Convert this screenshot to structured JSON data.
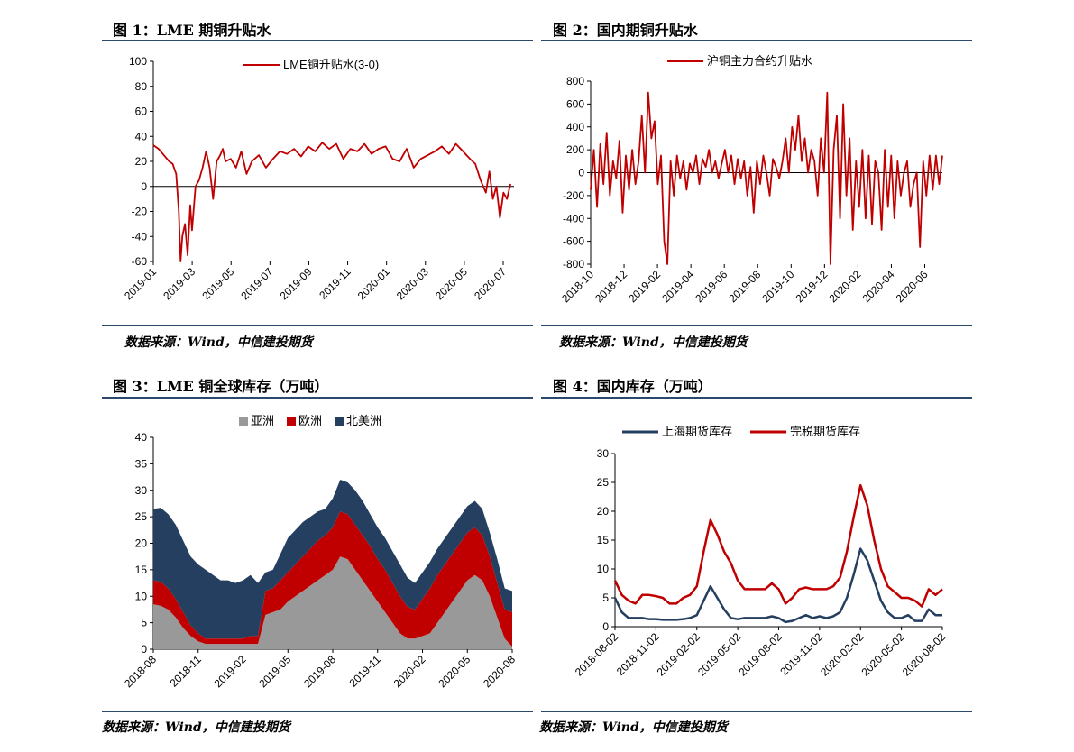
{
  "panels": [
    {
      "title": "图 1：LME 期铜升贴水",
      "source": "数据来源：Wind，中信建投期货"
    },
    {
      "title": "图 2：国内期铜升贴水",
      "source": "数据来源：Wind，中信建投期货"
    },
    {
      "title": "图 3：LME 铜全球库存（万吨）",
      "source": "数据来源：Wind，中信建投期货"
    },
    {
      "title": "图 4：国内库存（万吨）",
      "source": "数据来源：Wind，中信建投期货"
    }
  ],
  "colors": {
    "rule": "#2b4a6b",
    "red": "#c00000",
    "navy": "#243f60",
    "gray": "#999999"
  },
  "chart_data": [
    {
      "type": "line",
      "title": "",
      "ylim": [
        -60,
        100
      ],
      "yticks": [
        "100",
        "80",
        "60",
        "40",
        "20",
        "0",
        "-20",
        "-40",
        "-60"
      ],
      "xticks": [
        "2019-01",
        "2019-03",
        "2019-05",
        "2019-07",
        "2019-09",
        "2019-11",
        "2020-01",
        "2020-03",
        "2020-05",
        "2020-07"
      ],
      "legend": "top-center",
      "series": [
        {
          "name": "LME铜升贴水(3-0)",
          "color": "#c00000",
          "x": [
            0,
            0.3,
            0.6,
            0.9,
            1.1,
            1.3,
            1.45,
            1.55,
            1.65,
            1.8,
            1.95,
            2.1,
            2.2,
            2.4,
            2.6,
            2.8,
            3.0,
            3.2,
            3.4,
            3.6,
            3.8,
            3.95,
            4.1,
            4.4,
            4.7,
            5.0,
            5.3,
            5.6,
            6.0,
            6.4,
            6.8,
            7.2,
            7.6,
            8.0,
            8.4,
            8.8,
            9.2,
            9.6,
            10.0,
            10.4,
            10.8,
            11.2,
            11.6,
            12.0,
            12.4,
            12.8,
            13.2,
            13.6,
            14.0,
            14.4,
            14.8,
            15.2,
            15.6,
            16.0,
            16.4,
            16.8,
            17.2,
            17.6,
            18.0,
            18.3,
            18.6,
            18.9,
            19.1,
            19.3,
            19.5,
            19.7,
            19.9,
            20.1,
            20.3
          ],
          "values": [
            33,
            30,
            25,
            20,
            18,
            10,
            -20,
            -60,
            -40,
            -30,
            -55,
            -15,
            -35,
            0,
            5,
            15,
            28,
            15,
            -10,
            20,
            25,
            30,
            20,
            22,
            15,
            28,
            10,
            20,
            25,
            15,
            22,
            28,
            26,
            30,
            24,
            32,
            28,
            35,
            30,
            34,
            22,
            30,
            28,
            34,
            26,
            30,
            32,
            22,
            20,
            30,
            15,
            22,
            25,
            28,
            32,
            26,
            34,
            28,
            22,
            18,
            5,
            -5,
            12,
            -10,
            0,
            -25,
            -5,
            -10,
            2
          ]
        }
      ]
    },
    {
      "type": "line",
      "title": "",
      "ylim": [
        -800,
        800
      ],
      "yticks": [
        "800",
        "600",
        "400",
        "200",
        "0",
        "-200",
        "-400",
        "-600",
        "-800"
      ],
      "xticks": [
        "2018-10",
        "2018-12",
        "2019-02",
        "2019-04",
        "2019-06",
        "2019-08",
        "2019-10",
        "2019-12",
        "2020-02",
        "2020-04",
        "2020-06"
      ],
      "legend": "top-center",
      "series": [
        {
          "name": "沪铜主力合约升贴水",
          "color": "#c00000",
          "x": [
            0,
            0.2,
            0.4,
            0.6,
            0.8,
            1.0,
            1.2,
            1.4,
            1.6,
            1.8,
            2.0,
            2.2,
            2.4,
            2.6,
            2.8,
            3.0,
            3.2,
            3.4,
            3.6,
            3.8,
            4.0,
            4.2,
            4.4,
            4.6,
            4.8,
            5.0,
            5.2,
            5.4,
            5.6,
            5.8,
            6.0,
            6.2,
            6.4,
            6.6,
            6.8,
            7.0,
            7.2,
            7.4,
            7.6,
            7.8,
            8.0,
            8.2,
            8.4,
            8.6,
            8.8,
            9.0,
            9.2,
            9.4,
            9.6,
            9.8,
            10.0,
            10.2,
            10.4,
            10.6,
            10.8,
            11.0,
            11.2,
            11.4,
            11.6,
            11.8,
            12.0,
            12.2,
            12.4,
            12.6,
            12.8,
            13.0,
            13.2,
            13.4,
            13.6,
            13.8,
            14.0,
            14.2,
            14.4,
            14.6,
            14.8,
            15.0,
            15.2,
            15.4,
            15.6,
            15.8,
            16.0,
            16.2,
            16.4,
            16.6,
            16.8,
            17.0,
            17.2,
            17.4,
            17.6,
            17.8,
            18.0,
            18.2,
            18.4,
            18.6,
            18.8,
            19.0,
            19.2,
            19.4,
            19.6,
            19.8,
            20.0,
            20.2,
            20.4,
            20.6,
            20.8,
            21.0,
            21.2,
            21.4,
            21.6,
            21.8,
            22.0
          ],
          "values": [
            -150,
            200,
            -300,
            250,
            -100,
            350,
            -200,
            100,
            -50,
            280,
            -350,
            150,
            -150,
            200,
            -100,
            100,
            500,
            0,
            700,
            300,
            450,
            -100,
            150,
            -600,
            -800,
            100,
            -200,
            150,
            -50,
            100,
            -150,
            80,
            0,
            150,
            -100,
            120,
            50,
            200,
            0,
            100,
            -50,
            80,
            200,
            0,
            150,
            -100,
            120,
            -50,
            100,
            -200,
            50,
            -350,
            100,
            -100,
            150,
            0,
            -200,
            120,
            50,
            -50,
            100,
            300,
            0,
            400,
            200,
            500,
            100,
            300,
            0,
            200,
            100,
            -200,
            300,
            0,
            700,
            -800,
            200,
            500,
            -400,
            600,
            -200,
            300,
            -500,
            100,
            -300,
            200,
            -400,
            150,
            -450,
            100,
            0,
            -500,
            200,
            -300,
            150,
            -400,
            100,
            -200,
            0,
            100,
            -300,
            -100,
            0,
            -650,
            100,
            -200,
            150,
            -150,
            150,
            -100,
            150
          ]
        }
      ]
    },
    {
      "type": "area",
      "title": "",
      "ylim": [
        0,
        40
      ],
      "yticks": [
        "40",
        "35",
        "30",
        "25",
        "20",
        "15",
        "10",
        "5",
        "0"
      ],
      "xticks": [
        "2018-08",
        "2018-11",
        "2019-02",
        "2019-05",
        "2019-08",
        "2019-11",
        "2020-02",
        "2020-05",
        "2020-08"
      ],
      "legend": "top-center",
      "stacked": true,
      "x": [
        0,
        0.5,
        1,
        1.5,
        2,
        2.5,
        3,
        3.5,
        4,
        4.5,
        5,
        5.5,
        6,
        6.5,
        7,
        7.5,
        8,
        8.5,
        9,
        9.5,
        10,
        10.5,
        11,
        11.5,
        12,
        12.5,
        13,
        13.5,
        14,
        14.5,
        15,
        15.5,
        16,
        16.5,
        17,
        17.5,
        18,
        18.5,
        19,
        19.5,
        20,
        20.5,
        21,
        21.5,
        22,
        22.5,
        23,
        23.5,
        24
      ],
      "series": [
        {
          "name": "亚洲",
          "color": "#999999",
          "values": [
            8.5,
            8.2,
            7.5,
            6.0,
            4.0,
            2.5,
            1.5,
            1.0,
            1.0,
            1.0,
            1.0,
            1.0,
            1.0,
            1.0,
            1.0,
            6.5,
            7.0,
            7.5,
            9.0,
            10.0,
            11.0,
            12.0,
            13.0,
            14.0,
            15.0,
            17.5,
            17.0,
            15.0,
            13.0,
            11.0,
            9.0,
            7.0,
            5.0,
            3.0,
            2.0,
            2.0,
            2.5,
            3.0,
            5.0,
            7.0,
            9.0,
            11.0,
            13.0,
            14.0,
            13.0,
            10.0,
            6.0,
            2.0,
            0.5
          ]
        },
        {
          "name": "欧洲",
          "color": "#c00000",
          "values": [
            4.5,
            4.5,
            4.0,
            3.5,
            3.0,
            2.0,
            1.5,
            1.0,
            1.0,
            1.0,
            1.0,
            1.0,
            1.0,
            1.5,
            1.5,
            4.5,
            4.5,
            5.5,
            5.5,
            6.0,
            6.5,
            7.0,
            7.5,
            7.5,
            8.0,
            8.5,
            8.5,
            8.5,
            8.5,
            8.5,
            8.0,
            8.0,
            7.5,
            7.0,
            6.0,
            5.5,
            7.0,
            8.5,
            9.0,
            9.0,
            9.0,
            9.0,
            9.0,
            9.0,
            8.5,
            7.5,
            6.5,
            5.5,
            6.5
          ]
        },
        {
          "name": "北美洲",
          "color": "#243f60",
          "values": [
            13.5,
            14.0,
            14.0,
            14.0,
            13.5,
            13.0,
            13.0,
            13.0,
            12.0,
            11.0,
            11.0,
            10.5,
            11.0,
            11.5,
            10.0,
            3.5,
            3.5,
            5.0,
            6.5,
            6.5,
            6.5,
            6.0,
            5.5,
            5.0,
            5.5,
            6.0,
            6.0,
            6.5,
            6.5,
            6.0,
            6.0,
            6.0,
            6.0,
            6.0,
            5.5,
            5.0,
            5.0,
            5.0,
            5.0,
            5.0,
            5.0,
            5.0,
            5.0,
            5.0,
            5.0,
            4.5,
            4.5,
            4.0,
            4.0
          ]
        }
      ]
    },
    {
      "type": "line",
      "title": "",
      "ylim": [
        0,
        30
      ],
      "yticks": [
        "30",
        "25",
        "20",
        "15",
        "10",
        "5",
        "0"
      ],
      "xticks": [
        "2018-08-02",
        "2018-11-02",
        "2019-02-02",
        "2019-05-02",
        "2019-08-02",
        "2019-11-02",
        "2020-02-02",
        "2020-05-02",
        "2020-08-02"
      ],
      "legend": "top-center",
      "x": [
        0,
        0.5,
        1,
        1.5,
        2,
        2.5,
        3,
        3.5,
        4,
        4.5,
        5,
        5.5,
        6,
        6.5,
        7,
        7.5,
        8,
        8.5,
        9,
        9.5,
        10,
        10.5,
        11,
        11.5,
        12,
        12.5,
        13,
        13.5,
        14,
        14.5,
        15,
        15.5,
        16,
        16.5,
        17,
        17.5,
        18,
        18.5,
        19,
        19.5,
        20,
        20.5,
        21,
        21.5,
        22,
        22.5,
        23,
        23.5,
        24
      ],
      "series": [
        {
          "name": "上海期货库存",
          "color": "#243f60",
          "values": [
            5.0,
            2.5,
            1.5,
            1.5,
            1.5,
            1.3,
            1.3,
            1.2,
            1.2,
            1.2,
            1.3,
            1.5,
            2.0,
            4.5,
            7.0,
            5.0,
            3.0,
            1.5,
            1.3,
            1.5,
            1.5,
            1.5,
            1.5,
            1.8,
            1.5,
            0.8,
            1.0,
            1.5,
            2.0,
            1.5,
            1.8,
            1.5,
            1.8,
            2.5,
            5.0,
            9.0,
            13.5,
            11.5,
            8.0,
            4.5,
            2.5,
            1.5,
            1.5,
            2.0,
            1.0,
            1.0,
            3.0,
            2.0,
            2.0
          ]
        },
        {
          "name": "完税期货库存",
          "color": "#c00000",
          "values": [
            8.0,
            5.5,
            4.5,
            4.0,
            5.5,
            5.5,
            5.3,
            5.0,
            4.0,
            4.0,
            5.0,
            5.5,
            7.0,
            13.0,
            18.5,
            16.0,
            13.0,
            11.0,
            8.0,
            6.5,
            6.5,
            6.5,
            6.5,
            7.5,
            6.5,
            4.0,
            5.0,
            6.5,
            6.8,
            6.5,
            6.5,
            6.5,
            7.0,
            8.5,
            13.0,
            19.0,
            24.5,
            21.0,
            15.0,
            10.0,
            7.0,
            6.0,
            5.0,
            5.0,
            4.5,
            3.5,
            6.5,
            5.5,
            6.5
          ]
        }
      ]
    }
  ]
}
